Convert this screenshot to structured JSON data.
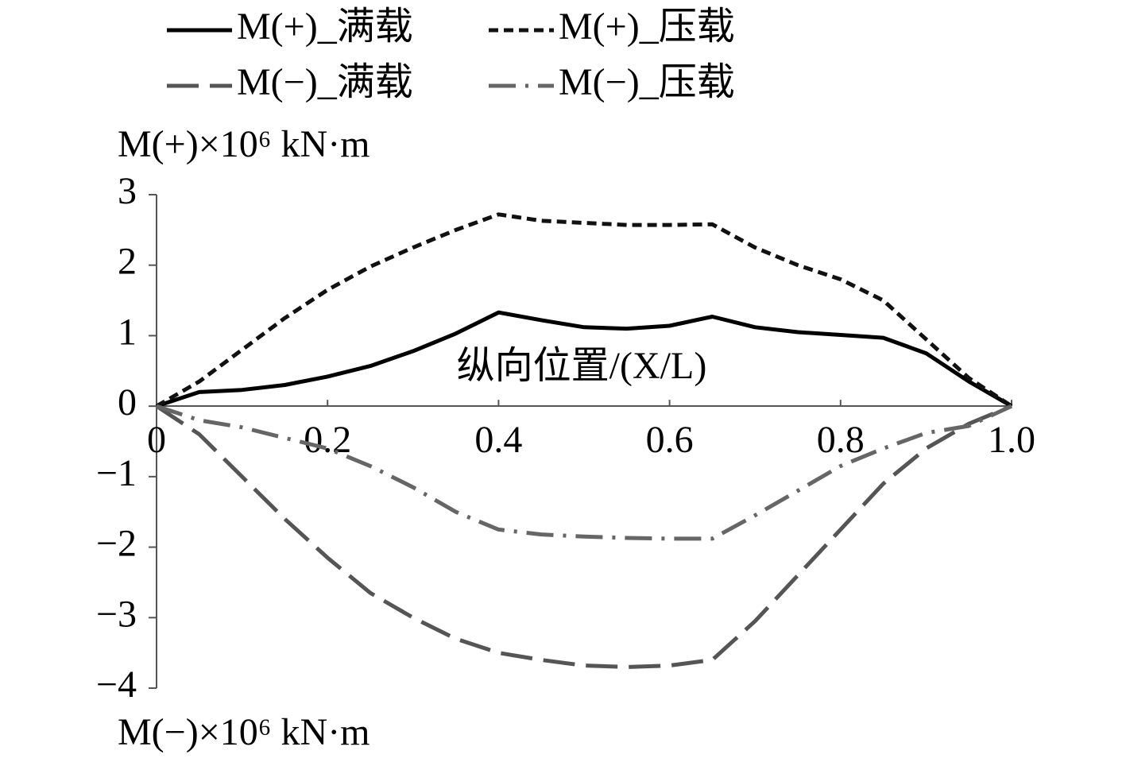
{
  "chart_data": {
    "type": "line",
    "y_label_top": "M(+)×10⁶ kN·m",
    "y_label_bottom": "M(−)×10⁶ kN·m",
    "x_label": "纵向位置/(X/L)",
    "x": [
      0,
      0.05,
      0.1,
      0.15,
      0.2,
      0.25,
      0.3,
      0.35,
      0.4,
      0.45,
      0.5,
      0.55,
      0.6,
      0.65,
      0.7,
      0.75,
      0.8,
      0.85,
      0.9,
      0.95,
      1.0
    ],
    "series": [
      {
        "name": "M(+)_满载",
        "color": "#000000",
        "style": "solid",
        "values": [
          0,
          0.2,
          0.23,
          0.3,
          0.42,
          0.57,
          0.78,
          1.03,
          1.33,
          1.22,
          1.12,
          1.1,
          1.14,
          1.27,
          1.12,
          1.05,
          1.01,
          0.97,
          0.75,
          0.35,
          0
        ]
      },
      {
        "name": "M(+)_压载",
        "color": "#111111",
        "style": "dashed",
        "values": [
          0,
          0.35,
          0.8,
          1.25,
          1.65,
          1.98,
          2.25,
          2.5,
          2.72,
          2.63,
          2.6,
          2.57,
          2.57,
          2.58,
          2.25,
          2.0,
          1.8,
          1.5,
          0.95,
          0.4,
          0
        ]
      },
      {
        "name": "M(−)_满载",
        "color": "#555555",
        "style": "long-dash",
        "values": [
          0,
          -0.4,
          -1.0,
          -1.6,
          -2.15,
          -2.65,
          -3.0,
          -3.3,
          -3.5,
          -3.6,
          -3.68,
          -3.7,
          -3.68,
          -3.6,
          -3.05,
          -2.4,
          -1.75,
          -1.1,
          -0.6,
          -0.25,
          0
        ]
      },
      {
        "name": "M(−)_压载",
        "color": "#666666",
        "style": "dash-dot",
        "values": [
          0,
          -0.2,
          -0.3,
          -0.45,
          -0.6,
          -0.85,
          -1.15,
          -1.5,
          -1.75,
          -1.82,
          -1.85,
          -1.87,
          -1.88,
          -1.88,
          -1.55,
          -1.2,
          -0.85,
          -0.6,
          -0.38,
          -0.28,
          0
        ]
      }
    ],
    "xlim": [
      0,
      1
    ],
    "xticks": [
      0,
      0.2,
      0.4,
      0.6,
      0.8,
      {
        "value": 1,
        "label": "1.0"
      }
    ],
    "ylim": [
      -4,
      3
    ],
    "yticks": [
      3,
      2,
      1,
      0,
      {
        "value": -1,
        "label": "−1"
      },
      {
        "value": -2,
        "label": "−2"
      },
      {
        "value": -3,
        "label": "−3"
      },
      {
        "value": -4,
        "label": "−4"
      }
    ],
    "legend": "top"
  }
}
